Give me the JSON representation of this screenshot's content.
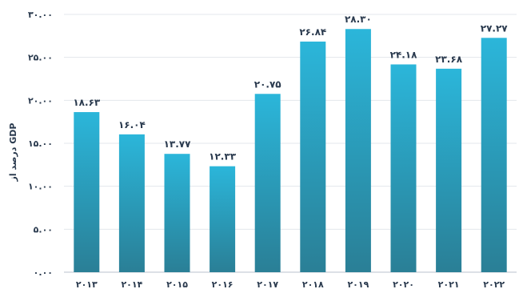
{
  "chart_data": {
    "type": "bar",
    "categories": [
      "۲۰۱۳",
      "۲۰۱۴",
      "۲۰۱۵",
      "۲۰۱۶",
      "۲۰۱۷",
      "۲۰۱۸",
      "۲۰۱۹",
      "۲۰۲۰",
      "۲۰۲۱",
      "۲۰۲۲"
    ],
    "values": [
      18.63,
      16.04,
      13.77,
      12.33,
      20.75,
      26.84,
      28.3,
      24.18,
      23.68,
      27.27
    ],
    "value_labels": [
      "۱۸.۶۳",
      "۱۶.۰۴",
      "۱۳.۷۷",
      "۱۲.۳۳",
      "۲۰.۷۵",
      "۲۶.۸۴",
      "۲۸.۳۰",
      "۲۴.۱۸",
      "۲۳.۶۸",
      "۲۷.۲۷"
    ],
    "ylabel": "درصد از GDP",
    "ylim": [
      0,
      30
    ],
    "yticks": [
      0,
      5,
      10,
      15,
      20,
      25,
      30
    ],
    "ytick_labels": [
      "۰.۰۰",
      "۵.۰۰",
      "۱۰.۰۰",
      "۱۵.۰۰",
      "۲۰.۰۰",
      "۲۵.۰۰",
      "۳۰.۰۰"
    ],
    "grid": true,
    "colors": {
      "bar_top": "#2bb6da",
      "bar_bottom": "#2a7f96",
      "text": "#2a3a4e"
    }
  }
}
